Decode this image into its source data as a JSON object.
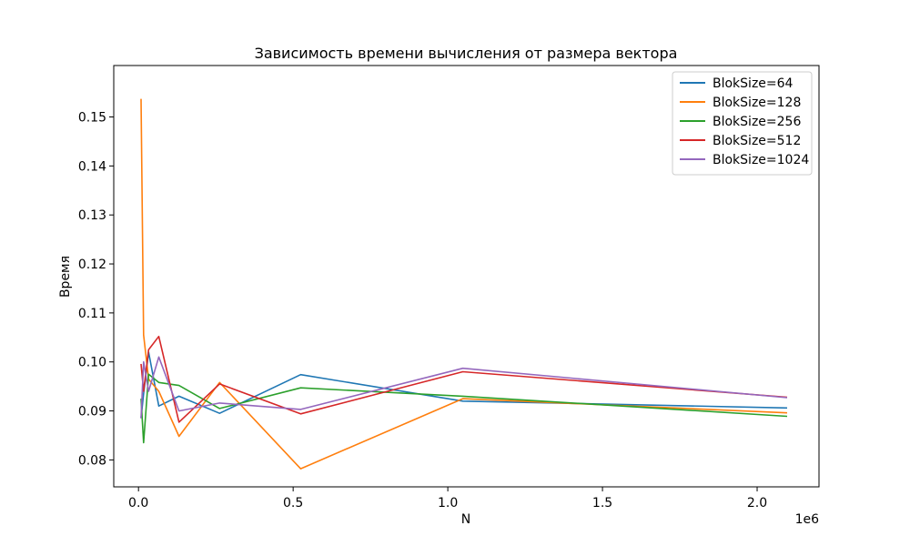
{
  "chart_data": {
    "type": "line",
    "title": "Зависимость времени вычисления от размера вектора",
    "xlabel": "N",
    "ylabel": "Время",
    "x_offset_label": "1e6",
    "x_scale": 1000000,
    "xlim": [
      -80000,
      2200000
    ],
    "ylim": [
      0.0745,
      0.1605
    ],
    "x_ticks": [
      0,
      0.5,
      1.0,
      1.5,
      2.0
    ],
    "x_tick_labels": [
      "0.0",
      "0.5",
      "1.0",
      "1.5",
      "2.0"
    ],
    "y_ticks": [
      0.08,
      0.09,
      0.1,
      0.11,
      0.12,
      0.13,
      0.14,
      0.15
    ],
    "y_tick_labels": [
      "0.08",
      "0.09",
      "0.10",
      "0.11",
      "0.12",
      "0.13",
      "0.14",
      "0.15"
    ],
    "grid": false,
    "legend_position": "top-right",
    "x": [
      8192,
      16384,
      32768,
      65536,
      131072,
      262144,
      524288,
      1048576,
      2097152
    ],
    "series": [
      {
        "name": "BlokSize=64",
        "color": "#1f77b4",
        "values": [
          0.0885,
          0.0935,
          0.102,
          0.091,
          0.093,
          0.0895,
          0.0974,
          0.092,
          0.0906
        ]
      },
      {
        "name": "BlokSize=128",
        "color": "#ff7f0e",
        "values": [
          0.1537,
          0.1055,
          0.0965,
          0.094,
          0.0848,
          0.0958,
          0.0782,
          0.0925,
          0.0896
        ]
      },
      {
        "name": "BlokSize=256",
        "color": "#2ca02c",
        "values": [
          0.0925,
          0.0835,
          0.0975,
          0.0958,
          0.0952,
          0.0905,
          0.0947,
          0.093,
          0.0889
        ]
      },
      {
        "name": "BlokSize=512",
        "color": "#d62728",
        "values": [
          0.0996,
          0.094,
          0.1025,
          0.1052,
          0.0877,
          0.0955,
          0.0894,
          0.098,
          0.0928
        ]
      },
      {
        "name": "BlokSize=1024",
        "color": "#9467bd",
        "values": [
          0.0885,
          0.1,
          0.094,
          0.101,
          0.09,
          0.0916,
          0.0903,
          0.0987,
          0.0927
        ]
      }
    ]
  }
}
